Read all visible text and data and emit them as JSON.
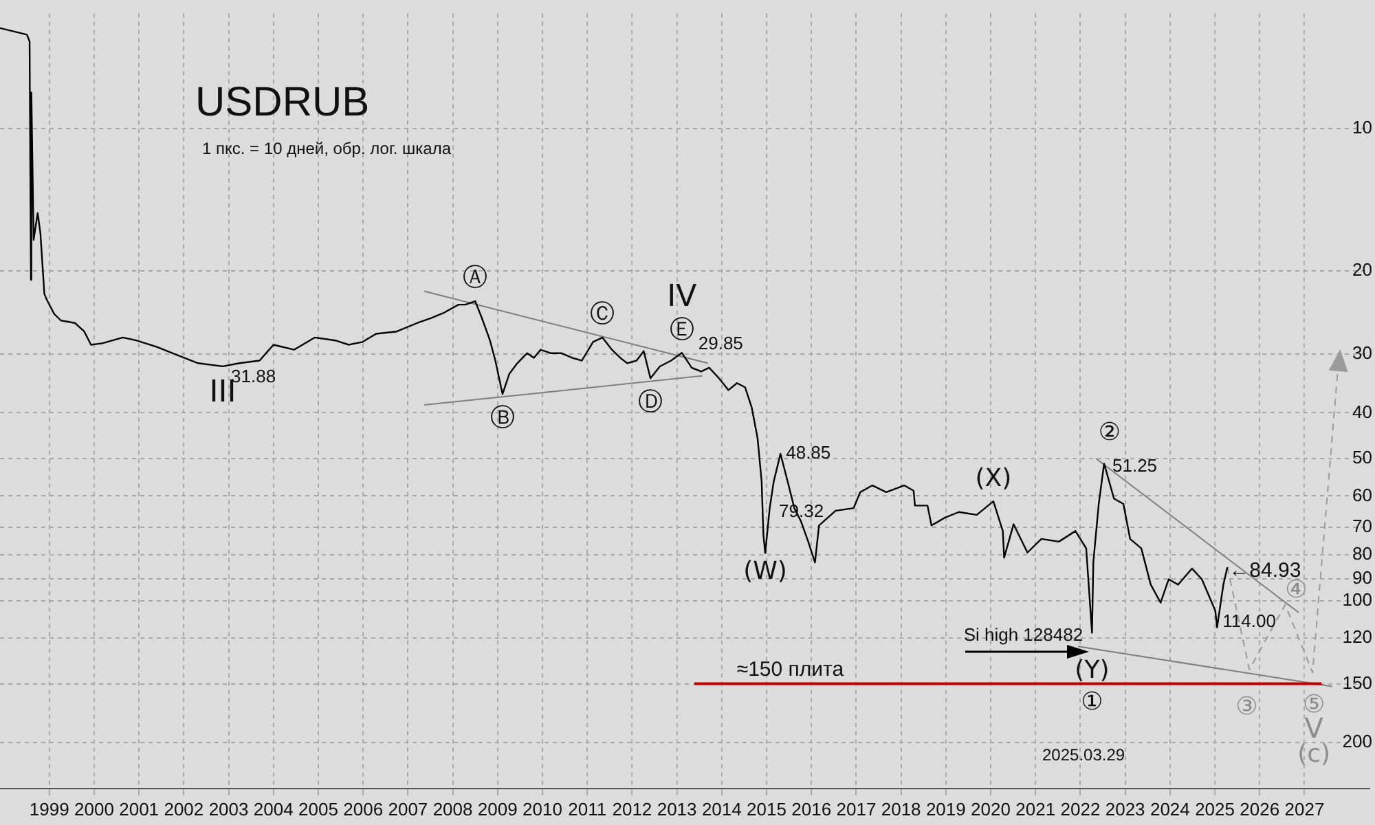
{
  "chart_data": {
    "type": "line",
    "title": "USDRUB",
    "subtitle": "1 пкс. = 10 дней, обр. лог. шкала",
    "log": "y",
    "grid": true,
    "legend": false,
    "marker": "none",
    "line_style": "solid",
    "xlim": [
      1997.9,
      2028.45
    ],
    "xticks": [
      {
        "value": 1999,
        "label": "1999"
      },
      {
        "value": 2000,
        "label": "2000"
      },
      {
        "value": 2001,
        "label": "2001"
      },
      {
        "value": 2002,
        "label": "2002"
      },
      {
        "value": 2003,
        "label": "2003"
      },
      {
        "value": 2004,
        "label": "2004"
      },
      {
        "value": 2005,
        "label": "2005"
      },
      {
        "value": 2006,
        "label": "2006"
      },
      {
        "value": 2007,
        "label": "2007"
      },
      {
        "value": 2008,
        "label": "2008"
      },
      {
        "value": 2009,
        "label": "2009"
      },
      {
        "value": 2010,
        "label": "2010"
      },
      {
        "value": 2011,
        "label": "2011"
      },
      {
        "value": 2012,
        "label": "2012"
      },
      {
        "value": 2013,
        "label": "2013"
      },
      {
        "value": 2014,
        "label": "2014"
      },
      {
        "value": 2015,
        "label": "2015"
      },
      {
        "value": 2016,
        "label": "2016"
      },
      {
        "value": 2017,
        "label": "2017"
      },
      {
        "value": 2018,
        "label": "2018"
      },
      {
        "value": 2019,
        "label": "2019"
      },
      {
        "value": 2020,
        "label": "2020"
      },
      {
        "value": 2021,
        "label": "2021"
      },
      {
        "value": 2022,
        "label": "2022"
      },
      {
        "value": 2023,
        "label": "2023"
      },
      {
        "value": 2024,
        "label": "2024"
      },
      {
        "value": 2025,
        "label": "2025"
      },
      {
        "value": 2026,
        "label": "2026"
      },
      {
        "value": 2027,
        "label": "2027"
      }
    ],
    "ylim": [
      250,
      5.7
    ],
    "yticks": [
      10,
      20,
      30,
      40,
      50,
      60,
      70,
      80,
      90,
      100,
      120,
      150,
      200
    ],
    "series": [
      {
        "color": "#000000",
        "x": [
          1997.9,
          1998.5,
          1998.56,
          1998.59,
          1998.6,
          1998.65,
          1998.74,
          1998.8,
          1998.89,
          1998.95,
          1999.11,
          1999.26,
          1999.57,
          1999.78,
          1999.93,
          2000.18,
          2000.64,
          2000.94,
          2001.4,
          2001.86,
          2002.32,
          2002.87,
          2003.24,
          2003.69,
          2004.0,
          2004.46,
          2004.92,
          2005.38,
          2005.68,
          2005.99,
          2006.29,
          2006.75,
          2007.21,
          2007.52,
          2007.82,
          2008.13,
          2008.28,
          2008.5,
          2008.65,
          2008.83,
          2008.95,
          2009.11,
          2009.26,
          2009.44,
          2009.66,
          2009.81,
          2009.96,
          2010.18,
          2010.42,
          2010.67,
          2010.88,
          2011.13,
          2011.34,
          2011.55,
          2011.74,
          2011.89,
          2012.1,
          2012.26,
          2012.41,
          2012.62,
          2012.87,
          2013.11,
          2013.33,
          2013.54,
          2013.72,
          2013.94,
          2014.15,
          2014.34,
          2014.52,
          2014.67,
          2014.8,
          2014.89,
          2014.93,
          2014.97,
          2015.07,
          2015.16,
          2015.31,
          2015.47,
          2015.62,
          2015.77,
          2015.93,
          2016.08,
          2016.17,
          2016.54,
          2016.94,
          2017.09,
          2017.36,
          2017.67,
          2018.07,
          2018.28,
          2018.31,
          2018.59,
          2018.68,
          2018.98,
          2019.29,
          2019.69,
          2020.06,
          2020.27,
          2020.3,
          2020.51,
          2020.82,
          2021.13,
          2021.52,
          2021.89,
          2022.13,
          2022.26,
          2022.29,
          2022.41,
          2022.53,
          2022.75,
          2022.96,
          2023.11,
          2023.36,
          2023.57,
          2023.79,
          2023.97,
          2024.18,
          2024.49,
          2024.71,
          2025.01,
          2025.05,
          2025.19,
          2025.28
        ],
        "values": [
          6.12,
          6.32,
          6.53,
          20.9,
          8.38,
          17.2,
          15.1,
          16.6,
          22.4,
          23.1,
          24.7,
          25.5,
          25.8,
          26.9,
          28.7,
          28.5,
          27.7,
          28.1,
          29.0,
          30.2,
          31.4,
          31.88,
          31.4,
          31.0,
          28.7,
          29.4,
          27.7,
          28.1,
          28.7,
          28.3,
          27.2,
          26.9,
          25.8,
          25.2,
          24.5,
          23.6,
          23.6,
          23.2,
          25.2,
          28.1,
          31.0,
          36.5,
          33.1,
          31.4,
          29.9,
          30.6,
          29.4,
          29.9,
          29.9,
          30.6,
          31.0,
          28.3,
          27.7,
          29.4,
          30.6,
          31.4,
          31.0,
          29.6,
          33.8,
          31.9,
          31.0,
          29.85,
          32.1,
          32.7,
          32.1,
          33.8,
          35.8,
          34.6,
          35.3,
          39.0,
          45.3,
          55.9,
          72.6,
          79.32,
          63.7,
          55.9,
          48.85,
          55.9,
          63.7,
          68.0,
          75.0,
          83.0,
          69.3,
          64.5,
          63.7,
          58.9,
          57.0,
          58.9,
          57.0,
          58.5,
          62.9,
          62.9,
          69.3,
          66.7,
          64.9,
          65.8,
          61.6,
          71.2,
          81.1,
          68.9,
          79.1,
          74.0,
          75.0,
          71.2,
          77.5,
          117,
          82.8,
          62.4,
          51.25,
          60.8,
          62.4,
          74.0,
          77.5,
          92.5,
          101,
          90.1,
          92.5,
          85.5,
          90.1,
          105,
          114.0,
          92.5,
          84.93
        ]
      },
      {
        "type": "line",
        "color": "#7f7f7f",
        "x": [
          2007.36,
          2013.69
        ],
        "values": [
          22.1,
          31.4
        ]
      },
      {
        "type": "line",
        "color": "#7f7f7f",
        "x": [
          2007.36,
          2013.57
        ],
        "values": [
          38.5,
          33.4
        ]
      },
      {
        "type": "line",
        "color": "#7f7f7f",
        "x": [
          2022.35,
          2026.87
        ],
        "values": [
          50.0,
          106
        ]
      },
      {
        "type": "line",
        "color": "#7f7f7f",
        "x": [
          2021.95,
          2027.61
        ],
        "values": [
          125,
          152
        ]
      },
      {
        "type": "line",
        "color": "#9a9a9a",
        "line_style": "dashed",
        "x": [
          2025.28,
          2025.77,
          2026.57,
          2027.18,
          2027.76
        ],
        "values": [
          84.93,
          140,
          102,
          142,
          31.0
        ]
      }
    ],
    "ref_lines": [
      {
        "axis": "y",
        "value": 150,
        "label": "≈150 плита",
        "color": "#c00000"
      }
    ],
    "annotations": [
      {
        "text": "Ⓐ",
        "x": 2008.5,
        "y": 23.2
      },
      {
        "text": "Ⓑ",
        "x": 2009.11,
        "y": 36.5
      },
      {
        "text": "Ⓒ",
        "x": 2011.34,
        "y": 27.7
      },
      {
        "text": "Ⓓ",
        "x": 2012.41,
        "y": 33.8
      },
      {
        "text": "Ⓔ",
        "x": 2013.11,
        "y": 29.85
      },
      {
        "text": "IV",
        "x": 2013.11,
        "y": 29.85
      },
      {
        "text": "III",
        "x": 2002.87,
        "y": 31.88
      },
      {
        "text": "31.88",
        "x": 2002.87,
        "y": 31.88
      },
      {
        "text": "29.85",
        "x": 2013.11,
        "y": 29.85
      },
      {
        "text": "48.85",
        "x": 2015.31,
        "y": 48.85
      },
      {
        "text": "79.32",
        "x": 2014.97,
        "y": 79.32
      },
      {
        "text": "(W)",
        "x": 2014.97,
        "y": 79.32
      },
      {
        "text": "(X)",
        "x": 2020.06,
        "y": 61.6
      },
      {
        "text": "②",
        "x": 2022.53,
        "y": 51.25
      },
      {
        "text": "51.25",
        "x": 2022.53,
        "y": 51.25
      },
      {
        "text": "Si high 128482",
        "x": 2022.26,
        "y": 117
      },
      {
        "text": "(Y)",
        "x": 2022.26,
        "y": 117
      },
      {
        "text": "①",
        "x": 2022.26,
        "y": 117
      },
      {
        "text": "←84.93",
        "x": 2025.28,
        "y": 84.93
      },
      {
        "text": "114.00",
        "x": 2025.05,
        "y": 114.0
      },
      {
        "text": "③",
        "x": 2025.77,
        "y": 140
      },
      {
        "text": "④",
        "x": 2026.57,
        "y": 102
      },
      {
        "text": "⑤",
        "x": 2027.18,
        "y": 142
      },
      {
        "text": "V",
        "x": 2027.18,
        "y": 142
      },
      {
        "text": "(c)",
        "x": 2027.18,
        "y": 142
      },
      "2025.03.29"
    ]
  }
}
